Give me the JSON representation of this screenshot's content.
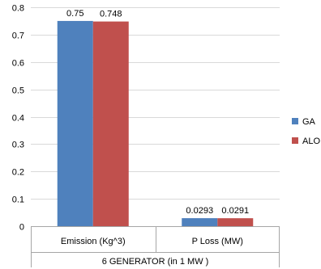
{
  "chart_data": {
    "type": "bar",
    "categories": [
      "Emission (Kg^3)",
      "P Loss (MW)"
    ],
    "series": [
      {
        "name": "GA",
        "values": [
          0.75,
          0.0293
        ],
        "labels": [
          "0.75",
          "0.0293"
        ],
        "color": "#4F81BD"
      },
      {
        "name": "ALO",
        "values": [
          0.748,
          0.0291
        ],
        "labels": [
          "0.748",
          "0.0291"
        ],
        "color": "#C0504D"
      }
    ],
    "title": "",
    "xlabel": "6 GENERATOR (in 1 MW )",
    "ylabel": "",
    "ylim": [
      0,
      0.8
    ],
    "yticks": [
      0,
      0.1,
      0.2,
      0.3,
      0.4,
      0.5,
      0.6,
      0.7,
      0.8
    ],
    "ytick_labels": [
      "0",
      "0.1",
      "0.2",
      "0.3",
      "0.4",
      "0.5",
      "0.6",
      "0.7",
      "0.8"
    ],
    "grid": true,
    "legend_position": "right"
  }
}
